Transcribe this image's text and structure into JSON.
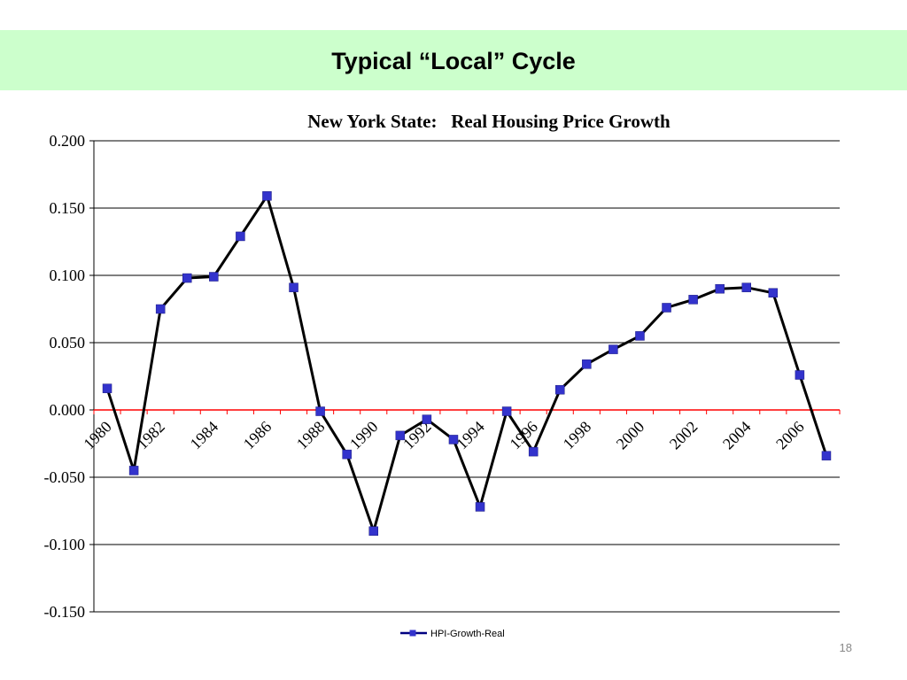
{
  "slide": {
    "title": "Typical “Local” Cycle",
    "page_number": "18",
    "band_color": "#ccffcc"
  },
  "chart_data": {
    "type": "line",
    "title": "New York State:   Real Housing Price Growth",
    "xlabel": "",
    "ylabel": "",
    "x": [
      1980,
      1981,
      1982,
      1983,
      1984,
      1985,
      1986,
      1987,
      1988,
      1989,
      1990,
      1991,
      1992,
      1993,
      1994,
      1995,
      1996,
      1997,
      1998,
      1999,
      2000,
      2001,
      2002,
      2003,
      2004,
      2005,
      2006,
      2007
    ],
    "x_tick_labels": [
      "1980",
      "1982",
      "1984",
      "1986",
      "1988",
      "1990",
      "1992",
      "1994",
      "1996",
      "1998",
      "2000",
      "2002",
      "2004",
      "2006"
    ],
    "y_tick_labels": [
      "0.200",
      "0.150",
      "0.100",
      "0.050",
      "0.000",
      "-0.050",
      "-0.100",
      "-0.150"
    ],
    "ylim": [
      -0.15,
      0.2
    ],
    "y_ticks": [
      0.2,
      0.15,
      0.1,
      0.05,
      0.0,
      -0.05,
      -0.1,
      -0.15
    ],
    "grid": true,
    "legend_position": "bottom",
    "series": [
      {
        "name": "HPI-Growth-Real",
        "line_color": "#000000",
        "marker_color": "#3333cc",
        "values": [
          0.016,
          -0.045,
          0.075,
          0.098,
          0.099,
          0.129,
          0.159,
          0.091,
          -0.001,
          -0.033,
          -0.09,
          -0.019,
          -0.007,
          -0.022,
          -0.072,
          -0.001,
          -0.031,
          0.015,
          0.034,
          0.045,
          0.055,
          0.076,
          0.082,
          0.09,
          0.091,
          0.087,
          0.026,
          -0.034
        ]
      }
    ],
    "zero_line_color": "#ff0000"
  }
}
